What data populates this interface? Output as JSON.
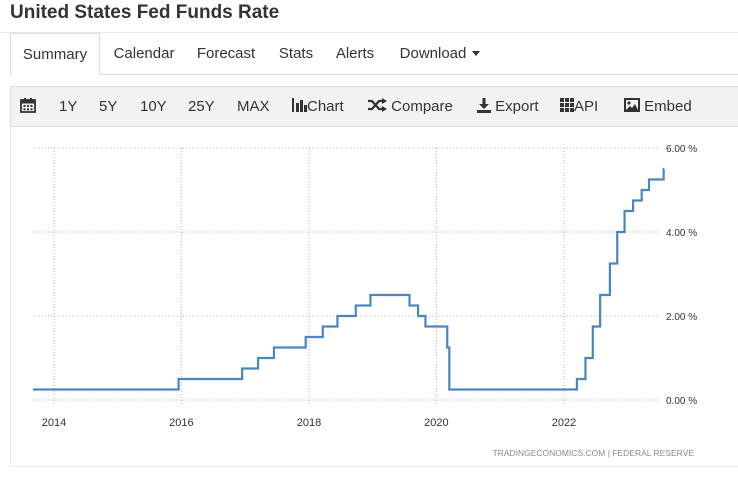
{
  "page": {
    "title": "United States Fed Funds Rate"
  },
  "tabs": [
    {
      "label": "Summary"
    },
    {
      "label": "Calendar"
    },
    {
      "label": "Forecast"
    },
    {
      "label": "Stats"
    },
    {
      "label": "Alerts"
    },
    {
      "label": "Download"
    }
  ],
  "toolbar": {
    "calendar_icon": "calendar-icon",
    "range_1y": "1Y",
    "range_5y": "5Y",
    "range_10y": "10Y",
    "range_25y": "25Y",
    "range_max": "MAX",
    "chart": "Chart",
    "compare": "Compare",
    "export": "Export",
    "api": "API",
    "embed": "Embed"
  },
  "chart_data": {
    "type": "line",
    "title": "",
    "xlabel": "",
    "ylabel": "",
    "x_ticks": [
      "2014",
      "2016",
      "2018",
      "2020",
      "2022"
    ],
    "y_ticks": [
      "0.00 %",
      "2.00 %",
      "4.00 %",
      "6.00 %"
    ],
    "ylim": [
      0,
      6
    ],
    "grid": true,
    "line_color": "#4a87c0",
    "source": "TRADINGECONOMICS.COM  |  FEDERAL RESERVE",
    "series": [
      {
        "step": true,
        "points": [
          [
            "2013-07-01",
            0.25
          ],
          [
            "2015-12-16",
            0.5
          ],
          [
            "2016-12-14",
            0.75
          ],
          [
            "2017-03-15",
            1.0
          ],
          [
            "2017-06-14",
            1.25
          ],
          [
            "2017-12-13",
            1.5
          ],
          [
            "2018-03-21",
            1.75
          ],
          [
            "2018-06-13",
            2.0
          ],
          [
            "2018-09-26",
            2.25
          ],
          [
            "2018-12-19",
            2.5
          ],
          [
            "2019-07-31",
            2.25
          ],
          [
            "2019-09-18",
            2.0
          ],
          [
            "2019-10-30",
            1.75
          ],
          [
            "2020-03-03",
            1.25
          ],
          [
            "2020-03-15",
            0.25
          ],
          [
            "2022-03-16",
            0.5
          ],
          [
            "2022-05-04",
            1.0
          ],
          [
            "2022-06-15",
            1.75
          ],
          [
            "2022-07-27",
            2.5
          ],
          [
            "2022-09-21",
            3.25
          ],
          [
            "2022-11-02",
            4.0
          ],
          [
            "2022-12-14",
            4.5
          ],
          [
            "2023-02-01",
            4.75
          ],
          [
            "2023-03-22",
            5.0
          ],
          [
            "2023-05-03",
            5.25
          ],
          [
            "2023-07-26",
            5.5
          ]
        ]
      }
    ]
  }
}
